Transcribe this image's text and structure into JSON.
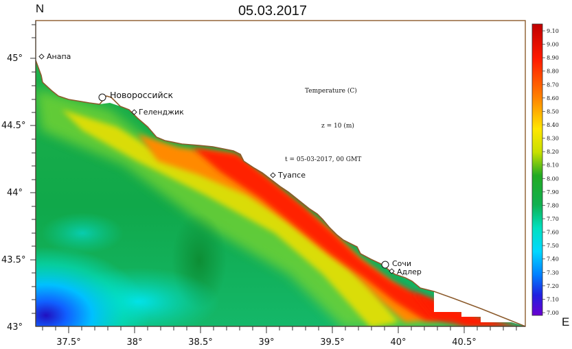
{
  "title": "05.03.2017",
  "north_label": "N",
  "east_label": "E",
  "annotations": {
    "variable": "Temperature (C)",
    "depth": "z = 10 (m)",
    "time": "t = 05-03-2017,  00 GMT"
  },
  "x_ticks": [
    "37.5°",
    "38°",
    "38.5°",
    "39°",
    "39.5°",
    "40°",
    "40.5°"
  ],
  "y_ticks": [
    "45°",
    "44.5°",
    "44°",
    "43.5°",
    "43°"
  ],
  "cities": {
    "anapa": "Анапа",
    "novorossiysk": "Новороссийск",
    "gelendzhik": "Геленджик",
    "tuapse": "Туапсе",
    "sochi": "Сочи",
    "adler": "Адлер"
  },
  "colorbar": {
    "min": 7.0,
    "max": 9.1,
    "ticks": [
      "9.10",
      "9.00",
      "8.90",
      "8.80",
      "8.70",
      "8.60",
      "8.50",
      "8.40",
      "8.30",
      "8.20",
      "8.10",
      "8.00",
      "7.90",
      "7.80",
      "7.70",
      "7.60",
      "7.50",
      "7.40",
      "7.30",
      "7.20",
      "7.10",
      "7.00"
    ]
  },
  "colors": {
    "coast": "#8b5a2b",
    "land": "#ffffff"
  }
}
